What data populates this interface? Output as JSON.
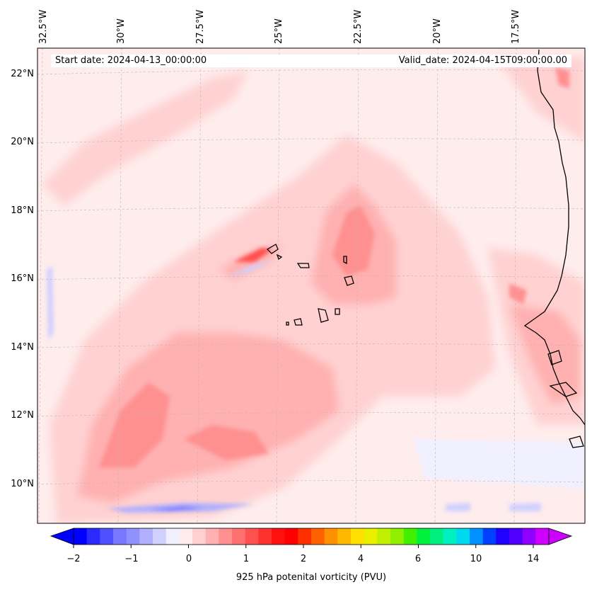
{
  "map": {
    "start_date": "Start date: 2024-04-13_00:00:00",
    "valid_date": "Valid_date: 2024-04-15T09:00:00.00",
    "lon_labels": [
      "32.5°W",
      "30°W",
      "27.5°W",
      "25°W",
      "22.5°W",
      "20°W",
      "17.5°W"
    ],
    "lat_labels": [
      "22°N",
      "20°N",
      "18°N",
      "16°N",
      "14°N",
      "12°N",
      "10°N"
    ],
    "features": [
      "Cape Verde islands",
      "West African coastline"
    ]
  },
  "colorbar": {
    "label": "925 hPa potenital vorticity (PVU)",
    "ticks": [
      "−2",
      "−1",
      "0",
      "1",
      "2",
      "4",
      "6",
      "10",
      "14"
    ],
    "colors": [
      "#0000ff",
      "#2a2aff",
      "#5050ff",
      "#7777ff",
      "#9090ff",
      "#b0b0ff",
      "#d0d0ff",
      "#f0f0ff",
      "#ffecec",
      "#ffd0d0",
      "#ffb0b0",
      "#ff9090",
      "#ff7070",
      "#ff5050",
      "#ff3030",
      "#ff1010",
      "#ff0000",
      "#ff3000",
      "#ff6000",
      "#ff9000",
      "#ffb800",
      "#ffe000",
      "#e8f000",
      "#c0f000",
      "#90f000",
      "#40f000",
      "#00f040",
      "#00f080",
      "#00f0c0",
      "#00d8f0",
      "#0090ff",
      "#0040ff",
      "#2000ff",
      "#5000ff",
      "#9000ff",
      "#d000ff"
    ],
    "under_color": "#0000ff",
    "over_color": "#cc00ff"
  }
}
